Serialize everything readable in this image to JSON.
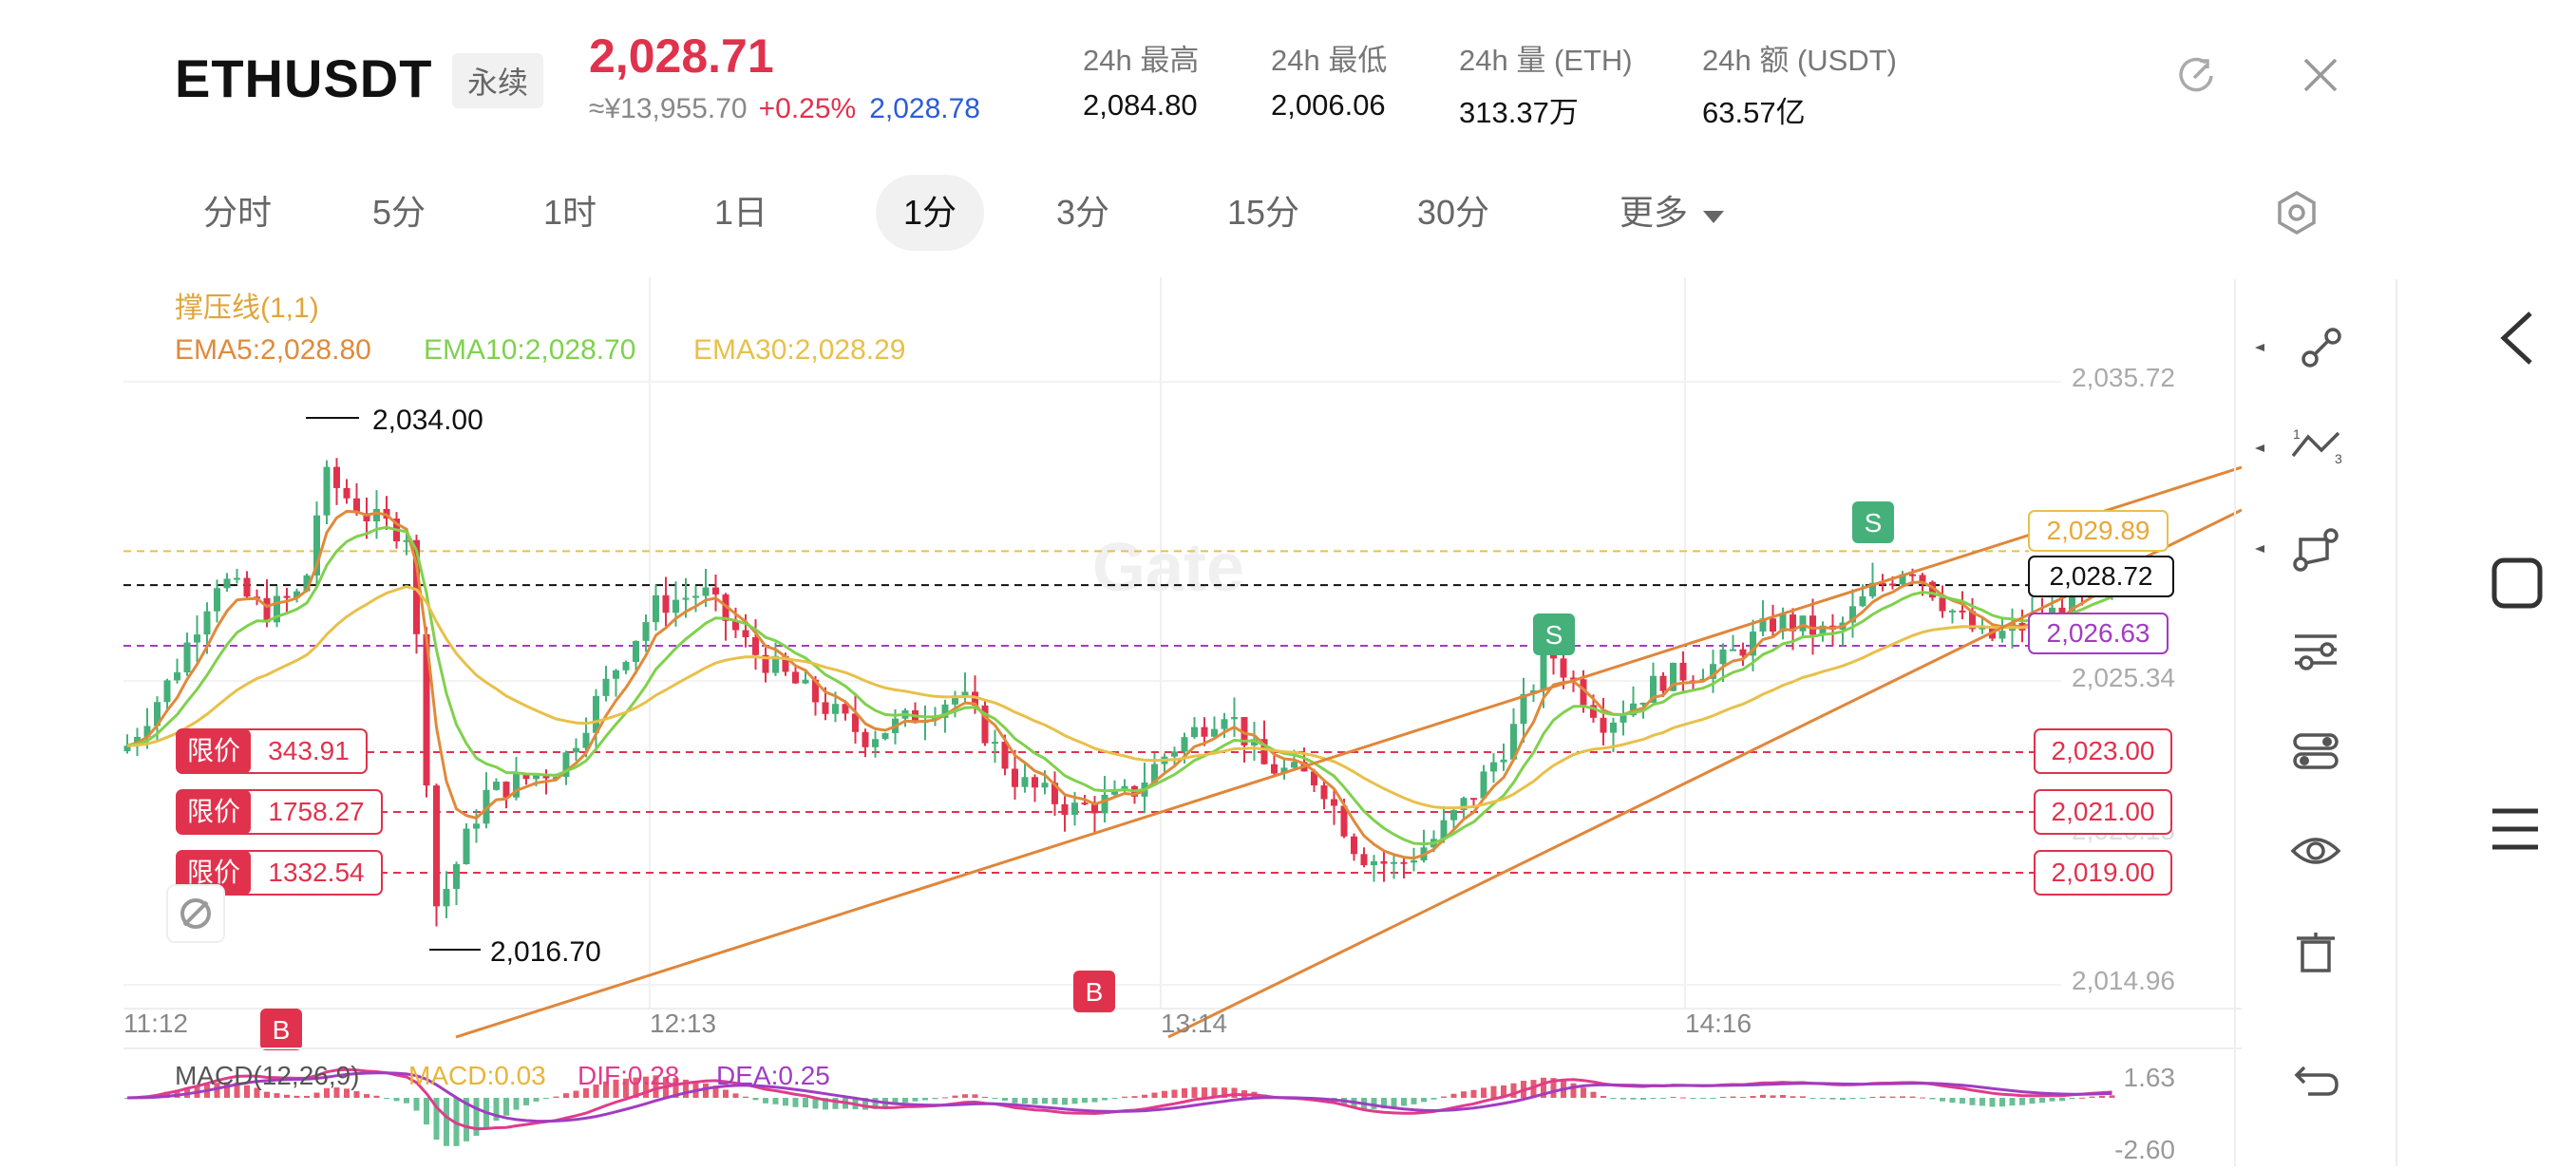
{
  "header": {
    "pair": "ETHUSDT",
    "contract_type": "永续",
    "last_price": "2,028.71",
    "cny_price": "≈¥13,955.70",
    "change_pct": "+0.25%",
    "mark_price": "2,028.78",
    "stats": [
      {
        "label": "24h  最高",
        "value": "2,084.80"
      },
      {
        "label": "24h  最低",
        "value": "2,006.06"
      },
      {
        "label": "24h  量 (ETH)",
        "value": "313.37万"
      },
      {
        "label": "24h  额 (USDT)",
        "value": "63.57亿"
      }
    ]
  },
  "tabs": [
    "分时",
    "5分",
    "1时",
    "1日",
    "1分",
    "3分",
    "15分",
    "30分",
    "更多"
  ],
  "active_tab": "1分",
  "chart": {
    "indicator_title": "撑压线(1,1)",
    "ema5": "EMA5:2,028.80",
    "ema10": "EMA10:2,028.70",
    "ema30": "EMA30:2,028.29",
    "colors": {
      "up": "#45b07a",
      "down": "#e0324d",
      "ema5": "#e08a3a",
      "ema10": "#7fd14e",
      "ema30": "#e8c04a",
      "trend": "#e0863a"
    },
    "y_ticks": [
      "2,035.72",
      "2,025.34",
      "2,014.96"
    ],
    "x_ticks": [
      "11:12",
      "12:13",
      "13:14",
      "14:16"
    ],
    "high_label": "2,034.00",
    "low_label": "2,016.70",
    "price_tags": {
      "yellow": "2,029.89",
      "last": "2,028.72",
      "purple": "2,026.63"
    },
    "orders": [
      {
        "type": "限价",
        "qty": "343.91",
        "price": "2,023.00"
      },
      {
        "type": "限价",
        "qty": "1758.27",
        "price": "2,021.00"
      },
      {
        "type": "限价",
        "qty": "1332.54",
        "price": "2,019.00"
      }
    ],
    "partial_tick": "2,020.15",
    "markers": {
      "buy": "B",
      "sell": "S"
    },
    "watermark": "Gate"
  },
  "macd": {
    "title": "MACD(12,26,9)",
    "macd": "MACD:0.03",
    "dif": "DIF:0.28",
    "dea": "DEA:0.25",
    "y_top": "1.63",
    "y_bottom": "-2.60"
  },
  "toolbar_icons": [
    "line-tool-icon",
    "wave-tool-icon",
    "shape-tool-icon",
    "indicator-settings-icon",
    "layers-icon",
    "eye-icon",
    "trash-icon",
    "undo-icon"
  ]
}
